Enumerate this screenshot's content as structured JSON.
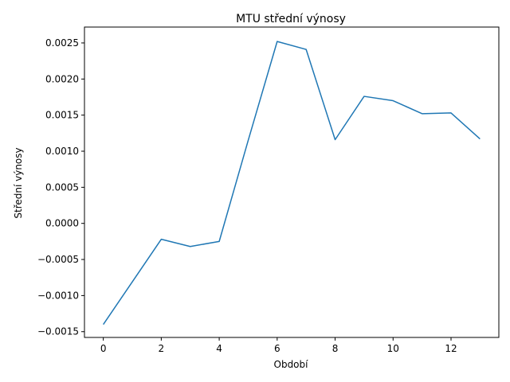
{
  "chart_data": {
    "type": "line",
    "title": "MTU střední výnosy",
    "xlabel": "Období",
    "ylabel": "Střední výnosy",
    "xlim": [
      -0.65,
      13.65
    ],
    "ylim": [
      -0.00158,
      0.00272
    ],
    "xticks": [
      0,
      2,
      4,
      6,
      8,
      10,
      12
    ],
    "xtick_labels": [
      "0",
      "2",
      "4",
      "6",
      "8",
      "10",
      "12"
    ],
    "yticks": [
      -0.0015,
      -0.001,
      -0.0005,
      0.0,
      0.0005,
      0.001,
      0.0015,
      0.002,
      0.0025
    ],
    "ytick_labels": [
      "−0.0015",
      "−0.0010",
      "−0.0005",
      "0.0000",
      "0.0005",
      "0.0010",
      "0.0015",
      "0.0020",
      "0.0025"
    ],
    "grid": false,
    "series": [
      {
        "color": "#1f77b4",
        "x": [
          0,
          1,
          2,
          3,
          4,
          5,
          6,
          7,
          8,
          9,
          10,
          11,
          12,
          13
        ],
        "y": [
          -0.0014,
          -0.00081,
          -0.00022,
          -0.00032,
          -0.00025,
          0.00115,
          0.00252,
          0.00241,
          0.00116,
          0.00176,
          0.0017,
          0.00152,
          0.00153,
          0.00117
        ]
      }
    ]
  }
}
